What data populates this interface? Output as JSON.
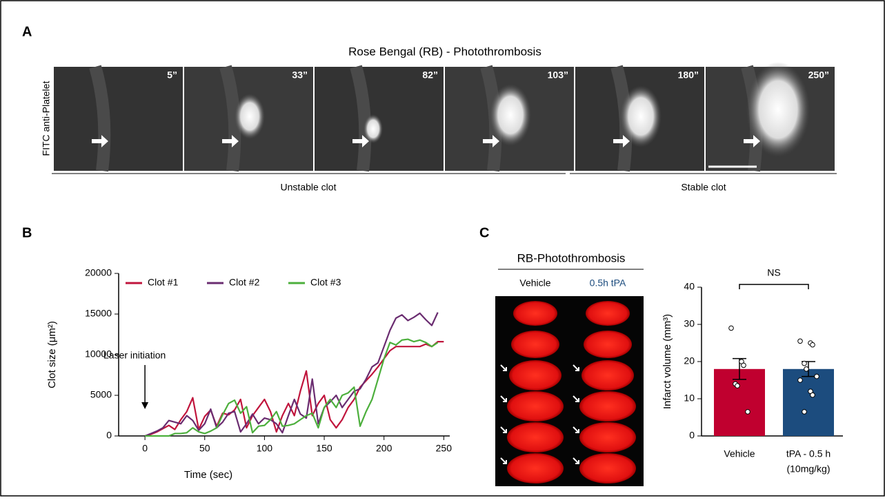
{
  "panel_a": {
    "label": "A",
    "title": "Rose Bengal (RB) - Photothrombosis",
    "y_label": "FITC anti-Platelet",
    "frames": [
      "5”",
      "33”",
      "82”",
      "103”",
      "180”",
      "250”"
    ],
    "groups": [
      "Unstable clot",
      "Stable clot"
    ]
  },
  "panel_b": {
    "label": "B"
  },
  "panel_c": {
    "label": "C",
    "image_title": "RB-Photothrombosis",
    "image_columns": [
      "Vehicle",
      "0.5h tPA"
    ]
  },
  "chart_data": [
    {
      "type": "line",
      "x_label": "Time (sec)",
      "y_label": "Clot size (μm²)",
      "annotation": "Laser initiation",
      "x": [
        0,
        5,
        10,
        15,
        20,
        25,
        30,
        35,
        40,
        45,
        50,
        55,
        60,
        65,
        70,
        75,
        80,
        85,
        90,
        95,
        100,
        105,
        110,
        115,
        120,
        125,
        130,
        135,
        140,
        145,
        150,
        155,
        160,
        165,
        170,
        175,
        180,
        185,
        190,
        195,
        200,
        205,
        210,
        215,
        220,
        225,
        230,
        235,
        240,
        245,
        250
      ],
      "series": [
        {
          "name": "Clot #1",
          "color": "#c0143c",
          "values": [
            0,
            200,
            500,
            900,
            1300,
            800,
            2000,
            3000,
            4700,
            800,
            2400,
            3200,
            1200,
            2800,
            2600,
            3200,
            4500,
            1000,
            2500,
            3500,
            4500,
            3000,
            500,
            2500,
            4000,
            2500,
            5500,
            8000,
            2500,
            4000,
            5000,
            2000,
            1000,
            2000,
            3500,
            4500,
            6000,
            6800,
            7600,
            8500,
            9500,
            10500,
            11000,
            11000,
            11000,
            11000,
            11000,
            11300,
            11000,
            11600,
            11600
          ]
        },
        {
          "name": "Clot #2",
          "color": "#6a2c70",
          "values": [
            0,
            300,
            600,
            1000,
            1900,
            1700,
            1500,
            2500,
            1900,
            700,
            1500,
            3300,
            1000,
            1700,
            2800,
            3000,
            500,
            1500,
            2700,
            1500,
            2200,
            2000,
            1500,
            400,
            2500,
            4500,
            2700,
            2200,
            7000,
            1500,
            3500,
            4200,
            5000,
            3500,
            4500,
            5500,
            5800,
            7000,
            8500,
            9000,
            11000,
            13000,
            14500,
            14900,
            14200,
            14600,
            15100,
            14300,
            13600,
            15200,
            null
          ]
        },
        {
          "name": "Clot #3",
          "color": "#4caf3c",
          "values": [
            0,
            0,
            0,
            0,
            0,
            300,
            300,
            400,
            1000,
            500,
            300,
            600,
            1000,
            2600,
            4000,
            4400,
            2800,
            3600,
            400,
            1200,
            1300,
            2000,
            3000,
            1200,
            1300,
            1500,
            2000,
            2500,
            2800,
            1000,
            3500,
            4500,
            3500,
            5000,
            5300,
            6000,
            1200,
            3000,
            4500,
            7000,
            9500,
            11500,
            11200,
            11800,
            11900,
            11600,
            11800,
            11500,
            11000,
            11500,
            null
          ]
        }
      ],
      "xlim": [
        -22,
        255
      ],
      "xticks": [
        0,
        50,
        100,
        150,
        200,
        250
      ],
      "ylim": [
        0,
        20000
      ],
      "yticks": [
        0,
        5000,
        10000,
        15000,
        20000
      ],
      "grid": false,
      "legend": "top-left"
    },
    {
      "type": "bar",
      "y_label": "Infarct volume (mm³)",
      "annotation": "NS",
      "categories": [
        "Vehicle",
        "tPA - 0.5 h"
      ],
      "category_sublabels": [
        null,
        "(10mg/kg)"
      ],
      "values": [
        18,
        18
      ],
      "errors": [
        2.8,
        2.0
      ],
      "colors": [
        "#c0002f",
        "#1c4c7e"
      ],
      "points": [
        [
          29,
          20,
          19,
          14,
          13.5,
          6.5
        ],
        [
          25.5,
          25,
          24.5,
          19.5,
          18,
          16,
          15,
          12,
          11,
          6.5
        ]
      ],
      "ylim": [
        0,
        40
      ],
      "yticks": [
        0,
        10,
        20,
        30,
        40
      ],
      "grid": false
    }
  ]
}
